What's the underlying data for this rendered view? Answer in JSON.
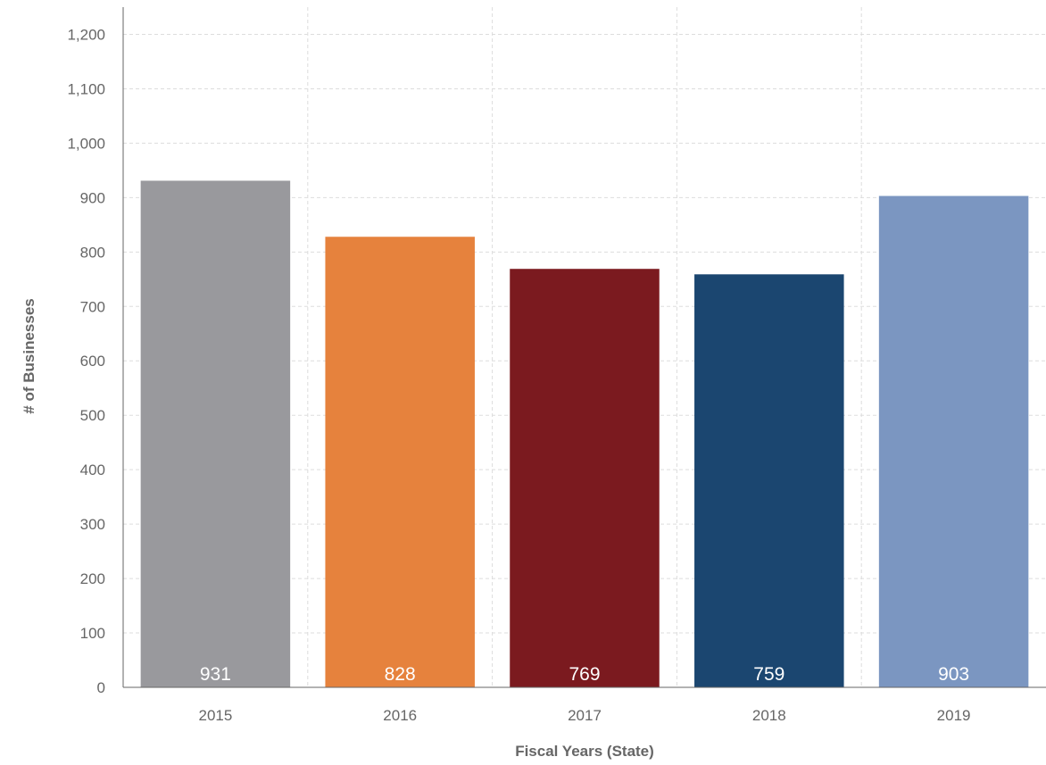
{
  "chart_data": {
    "type": "bar",
    "title": "",
    "xlabel": "Fiscal Years (State)",
    "ylabel": "# of Businesses",
    "categories": [
      "2015",
      "2016",
      "2017",
      "2018",
      "2019"
    ],
    "values": [
      931,
      828,
      769,
      759,
      903
    ],
    "data_labels": [
      "931",
      "828",
      "769",
      "759",
      "903"
    ],
    "bar_colors": [
      "#99999d",
      "#e6823d",
      "#7b1a1f",
      "#1b4670",
      "#7b96c1"
    ],
    "ylim": [
      0,
      1250
    ],
    "yticks": [
      0,
      100,
      200,
      300,
      400,
      500,
      600,
      700,
      800,
      900,
      1000,
      1100,
      1200
    ],
    "ytick_labels": [
      "0",
      "100",
      "200",
      "300",
      "400",
      "500",
      "600",
      "700",
      "800",
      "900",
      "1,000",
      "1,100",
      "1,200"
    ],
    "grid": true,
    "legend": "none"
  }
}
